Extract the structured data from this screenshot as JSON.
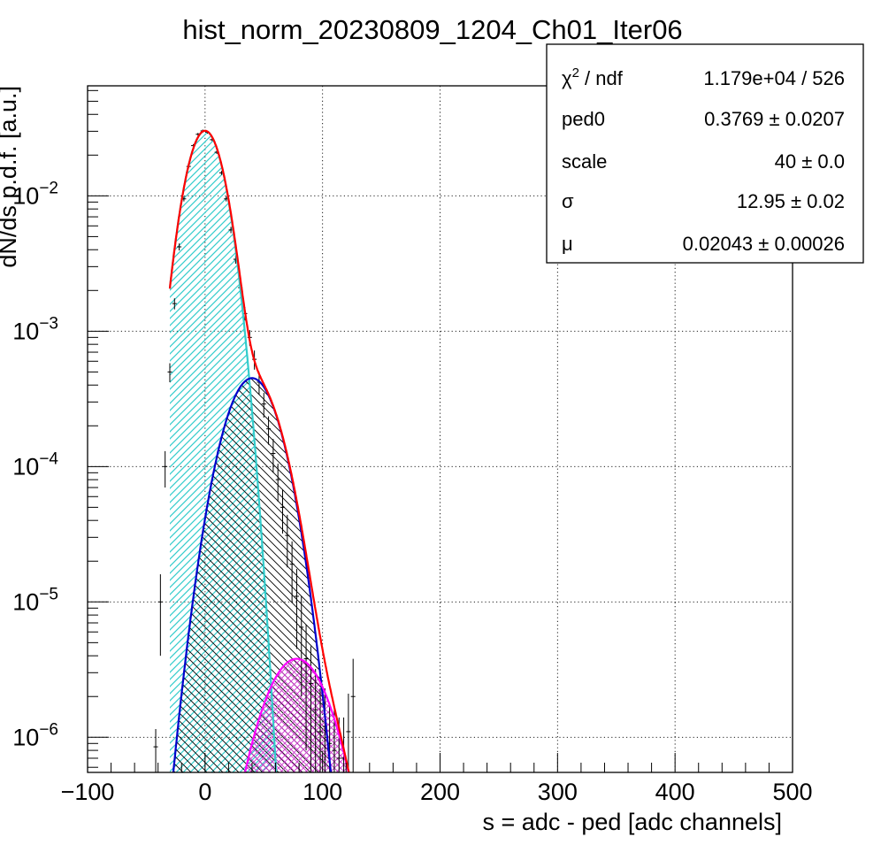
{
  "chart_data": {
    "type": "line",
    "title": "hist_norm_20230809_1204_Ch01_Iter06",
    "xlabel": "s = adc - ped [adc channels]",
    "ylabel": "dN/ds p.d.f. [a.u.]",
    "xlim": [
      -100,
      500
    ],
    "ylim": [
      5.5e-07,
      0.065
    ],
    "yscale": "log",
    "grid": true,
    "x_ticks": [
      {
        "value": -100,
        "label": "−100"
      },
      {
        "value": 0,
        "label": "0"
      },
      {
        "value": 100,
        "label": "100"
      },
      {
        "value": 200,
        "label": "200"
      },
      {
        "value": 300,
        "label": "300"
      },
      {
        "value": 400,
        "label": "400"
      },
      {
        "value": 500,
        "label": "500"
      }
    ],
    "y_ticks": [
      {
        "value": 0.01,
        "base": "10",
        "exp": "−2"
      },
      {
        "value": 0.001,
        "base": "10",
        "exp": "−3"
      },
      {
        "value": 0.0001,
        "base": "10",
        "exp": "−4"
      },
      {
        "value": 1e-05,
        "base": "10",
        "exp": "−5"
      },
      {
        "value": 1e-06,
        "base": "10",
        "exp": "−6"
      }
    ],
    "series": [
      {
        "kind": "data_points",
        "color": "#000000",
        "x": [
          -42,
          -38,
          -34,
          -30,
          -26,
          -22,
          -18,
          -14,
          -10,
          -6,
          -2,
          2,
          6,
          10,
          14,
          18,
          22,
          26,
          30,
          34,
          38,
          42,
          46,
          50,
          54,
          58,
          62,
          66,
          70,
          74,
          78,
          82,
          86,
          90,
          94,
          98,
          102,
          106,
          110,
          114,
          118,
          122,
          126
        ],
        "y": [
          8.5e-07,
          1e-05,
          0.0001,
          0.0005,
          0.0016,
          0.0042,
          0.0095,
          0.0165,
          0.0235,
          0.0285,
          0.0302,
          0.0295,
          0.026,
          0.021,
          0.0148,
          0.0095,
          0.0056,
          0.0034,
          0.0021,
          0.00135,
          0.0009,
          0.00062,
          0.00042,
          0.00029,
          0.00019,
          0.000125,
          8e-05,
          5e-05,
          3.1e-05,
          1.9e-05,
          1.1e-05,
          6.5e-06,
          3.8e-06,
          2.5e-06,
          1.6e-06,
          1.1e-06,
          1.2e-06,
          9e-07,
          8e-07,
          7e-07,
          7e-07,
          1.1e-06,
          2e-06
        ],
        "y_err": [
          3e-07,
          6e-06,
          3e-05,
          8e-05,
          0.00015,
          0.00025,
          0.0004,
          0.0005,
          0.0006,
          0.0007,
          0.0007,
          0.0007,
          0.0006,
          0.0006,
          0.0005,
          0.0004,
          0.0003,
          0.00025,
          0.0002,
          0.00015,
          0.00012,
          0.0001,
          8e-05,
          6e-05,
          4.5e-05,
          3.5e-05,
          2.5e-05,
          1.8e-05,
          1.3e-05,
          9e-06,
          6.5e-06,
          4.5e-06,
          3e-06,
          2.2e-06,
          1.6e-06,
          1.2e-06,
          1.1e-06,
          9e-07,
          8e-07,
          7e-07,
          7e-07,
          1e-06,
          1.8e-06
        ]
      },
      {
        "kind": "gauss_fill",
        "color": "#33cccc",
        "fill": "#7fdfdf",
        "mu": 0,
        "sigma": 12.95,
        "amp": 0.0302,
        "xmin": -30,
        "xmax": 70
      },
      {
        "kind": "gauss_fill",
        "color": "#0000cc",
        "fill": "#000000",
        "mu": 40,
        "sigma": 18.3,
        "amp": 0.00045,
        "xmin": -40,
        "xmax": 125
      },
      {
        "kind": "gauss_fill",
        "color": "#ff00ff",
        "fill": "#cc33cc",
        "mu": 78,
        "sigma": 22.4,
        "amp": 3.8e-06,
        "xmin": 30,
        "xmax": 125
      },
      {
        "kind": "total_fit",
        "color": "#ff0000",
        "xmin": -30,
        "xmax": 125
      }
    ],
    "legend": "none",
    "stats_box": {
      "position": "top-right",
      "rows": [
        {
          "name": "ndf",
          "name_pre": "χ",
          "name_sup": "2",
          "name_post": " / ndf",
          "value": "1.179e+04 / 526"
        },
        {
          "name": "ped0",
          "name_pre": "ped0",
          "name_sup": "",
          "name_post": "",
          "value": "0.3769 ± 0.0207"
        },
        {
          "name": "scale",
          "name_pre": "scale",
          "name_sup": "",
          "name_post": "",
          "value": "40 ± 0.0"
        },
        {
          "name": "sigma",
          "name_pre": "σ",
          "name_sup": "",
          "name_post": "",
          "value": "12.95 ± 0.02"
        },
        {
          "name": "mu",
          "name_pre": "μ",
          "name_sup": "",
          "name_post": "",
          "value": "0.02043 ± 0.00026"
        }
      ]
    }
  }
}
